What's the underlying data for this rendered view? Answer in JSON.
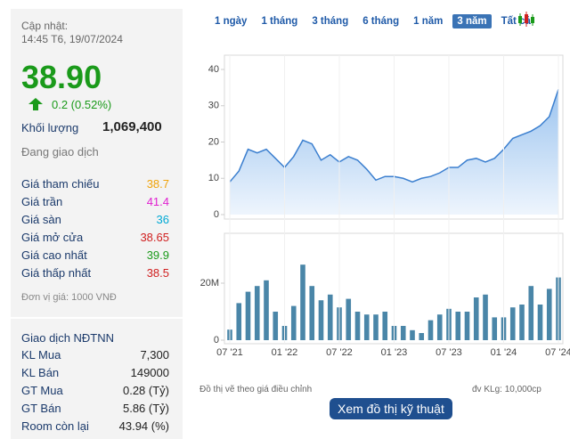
{
  "quote": {
    "updated_label": "Cập nhật:",
    "updated_time": "14:45 T6, 19/07/2024",
    "price": "38.90",
    "change": "0.2 (0.52%)",
    "volume_label": "Khối lượng",
    "volume": "1,069,400",
    "status": "Đang giao dịch"
  },
  "prices": [
    {
      "label": "Giá tham chiếu",
      "value": "38.7"
    },
    {
      "label": "Giá trần",
      "value": "41.4"
    },
    {
      "label": "Giá sàn",
      "value": "36"
    },
    {
      "label": "Giá mở cửa",
      "value": "38.65"
    },
    {
      "label": "Giá cao nhất",
      "value": "39.9"
    },
    {
      "label": "Giá thấp nhất",
      "value": "38.5"
    }
  ],
  "unit_note": "Đơn vị giá: 1000 VNĐ",
  "foreign": {
    "title": "Giao dịch NĐTNN",
    "rows": [
      {
        "label": "KL Mua",
        "value": "7,300"
      },
      {
        "label": "KL Bán",
        "value": "149000"
      },
      {
        "label": "GT Mua",
        "value": "0.28 (Tỷ)"
      },
      {
        "label": "GT Bán",
        "value": "5.86 (Tỷ)"
      },
      {
        "label": "Room còn lại",
        "value": "43.94 (%)"
      }
    ]
  },
  "range_buttons": [
    "1 ngày",
    "1 tháng",
    "3 tháng",
    "6 tháng",
    "1 năm",
    "3 năm",
    "Tất cả"
  ],
  "active_range": 5,
  "notes": {
    "adjusted": "Đồ thị vẽ theo giá điều chỉnh",
    "volume_unit": "đv KLg: 10,000cp"
  },
  "button": "Xem đồ thị kỹ thuật",
  "chart_data": [
    {
      "type": "area",
      "color": "#3b7fcf",
      "values": [
        9,
        12,
        18,
        17,
        18,
        15.5,
        13,
        16,
        20.5,
        19.5,
        15,
        16.5,
        14.5,
        16,
        15,
        12.5,
        9.5,
        10.5,
        10.5,
        10,
        9,
        10,
        10.5,
        11.5,
        13,
        13,
        15,
        15.5,
        14.5,
        15.5,
        18,
        21,
        22,
        23,
        24.5,
        27,
        34.5
      ],
      "ylim": [
        0,
        40
      ],
      "yticks": [
        0,
        10,
        20,
        30,
        40
      ]
    },
    {
      "type": "bar",
      "color": "#4a86a8",
      "categories": [
        "07 '21",
        null,
        null,
        null,
        null,
        null,
        "01 '22",
        null,
        null,
        null,
        null,
        null,
        "07 '22",
        null,
        null,
        null,
        null,
        null,
        "01 '23",
        null,
        null,
        null,
        null,
        null,
        "07 '23",
        null,
        null,
        null,
        null,
        null,
        "01 '24",
        null,
        null,
        null,
        null,
        null,
        "07 '24"
      ],
      "values": [
        3700000,
        13000000,
        17000000,
        19000000,
        21000000,
        10000000,
        5000000,
        12000000,
        26500000,
        19000000,
        14000000,
        16000000,
        11500000,
        14500000,
        10000000,
        9000000,
        9000000,
        10000000,
        5000000,
        5000000,
        3500000,
        2500000,
        7000000,
        9000000,
        11000000,
        10000000,
        10000000,
        15000000,
        16000000,
        8000000,
        8000000,
        11500000,
        12500000,
        19000000,
        12500000,
        18000000,
        22000000
      ],
      "ylim": [
        0,
        37500000
      ],
      "yticks": [
        0,
        {
          "value": 20000000,
          "label": "20M"
        }
      ]
    }
  ]
}
